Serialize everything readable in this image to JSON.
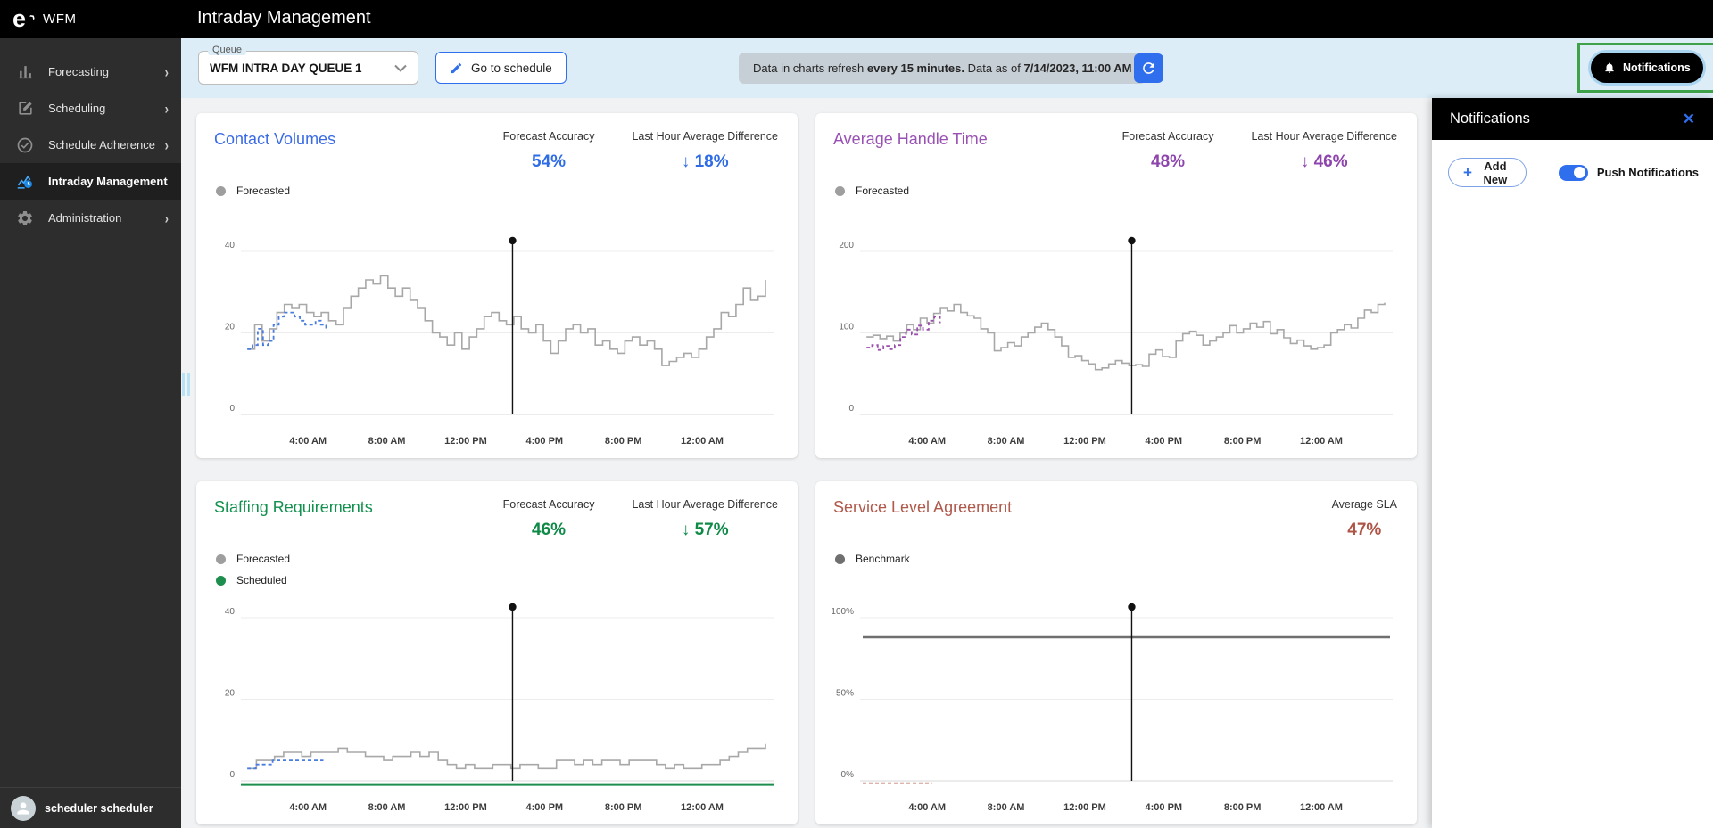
{
  "app": {
    "logo": "e",
    "logo_mark": "›",
    "brand": "WFM",
    "page_title": "Intraday Management"
  },
  "sidebar": {
    "items": [
      {
        "label": "Forecasting",
        "icon": "bar-chart-icon",
        "chevron": "›",
        "active": false
      },
      {
        "label": "Scheduling",
        "icon": "edit-icon",
        "chevron": "›",
        "active": false
      },
      {
        "label": "Schedule Adherence",
        "icon": "check-circle-icon",
        "chevron": "›",
        "active": false
      },
      {
        "label": "Intraday Management",
        "icon": "intraday-chart-icon",
        "chevron": "",
        "active": true
      },
      {
        "label": "Administration",
        "icon": "gear-icon",
        "chevron": "›",
        "active": false
      }
    ],
    "user_name": "scheduler scheduler"
  },
  "toolbar": {
    "queue_label": "Queue",
    "queue_value": "WFM INTRA DAY QUEUE 1",
    "go_to_schedule": "Go to schedule",
    "refresh_prefix": "Data in charts refresh ",
    "refresh_bold1": "every 15 minutes.",
    "refresh_mid": " Data as of ",
    "refresh_bold2": "7/14/2023, 11:00 AM",
    "notifications_label": "Notifications"
  },
  "notifications_panel": {
    "title": "Notifications",
    "close_icon": "✕",
    "add_new": "Add New",
    "push_notifications": "Push Notifications"
  },
  "colors": {
    "accent_blue": "#2f6fed",
    "strip_bg": "#dcedf8",
    "green_annotation": "#3fa24a",
    "grid": "#ececec",
    "axis": "#d8d8d8"
  },
  "chart_data": [
    {
      "type": "step-line",
      "title": "Contact Volumes",
      "title_color": "#3b6be4",
      "value_color": "#2e6be6",
      "metrics": [
        {
          "label": "Forecast Accuracy",
          "value": "54%"
        },
        {
          "label": "Last Hour Average Difference",
          "value": "↓ 18%"
        }
      ],
      "legend": [
        {
          "label": "Forecasted",
          "color": "#9e9e9e"
        }
      ],
      "ylim": [
        0,
        40
      ],
      "yticks": [
        {
          "v": 0,
          "label": "0"
        },
        {
          "v": 20,
          "label": "20"
        },
        {
          "v": 40,
          "label": "40"
        }
      ],
      "xticks": [
        {
          "pos": 0.126,
          "label": "4:00 AM"
        },
        {
          "pos": 0.274,
          "label": "8:00 AM"
        },
        {
          "pos": 0.422,
          "label": "12:00 PM"
        },
        {
          "pos": 0.57,
          "label": "4:00 PM"
        },
        {
          "pos": 0.718,
          "label": "8:00 PM"
        },
        {
          "pos": 0.866,
          "label": "12:00 AM"
        }
      ],
      "marker_pos": 0.51,
      "series": [
        {
          "name": "forecasted",
          "color": "#a8a8a8",
          "width": 1.6,
          "dash": false,
          "x0": 0.012,
          "x1": 0.985,
          "values": [
            16,
            22,
            18,
            21,
            25,
            27,
            26,
            27,
            25,
            24,
            25,
            23,
            22,
            26,
            29,
            31,
            33,
            32,
            34,
            31,
            29,
            31,
            28,
            26,
            23,
            20,
            19,
            17,
            20,
            16,
            19,
            21,
            24,
            25,
            23,
            22,
            24,
            21,
            20,
            22,
            18,
            15,
            18,
            21,
            22,
            20,
            21,
            17,
            18,
            16,
            15,
            18,
            19,
            17,
            18,
            16,
            12,
            13,
            14,
            15,
            14,
            16,
            19,
            21,
            25,
            24,
            27,
            31,
            28,
            29,
            33
          ]
        },
        {
          "name": "actual",
          "color": "#4a7de0",
          "width": 1.8,
          "dash": true,
          "x0": 0.012,
          "x1": 0.16,
          "values": [
            16,
            17,
            21,
            17,
            18,
            22,
            24,
            25,
            25,
            24,
            23,
            22,
            22,
            23,
            22,
            21
          ]
        }
      ]
    },
    {
      "type": "step-line",
      "title": "Average Handle Time",
      "title_color": "#9952b3",
      "value_color": "#8e44ad",
      "metrics": [
        {
          "label": "Forecast Accuracy",
          "value": "48%"
        },
        {
          "label": "Last Hour Average Difference",
          "value": "↓ 46%"
        }
      ],
      "legend": [
        {
          "label": "Forecasted",
          "color": "#9e9e9e"
        }
      ],
      "ylim": [
        0,
        200
      ],
      "yticks": [
        {
          "v": 0,
          "label": "0"
        },
        {
          "v": 100,
          "label": "100"
        },
        {
          "v": 200,
          "label": "200"
        }
      ],
      "xticks": [
        {
          "pos": 0.126,
          "label": "4:00 AM"
        },
        {
          "pos": 0.274,
          "label": "8:00 AM"
        },
        {
          "pos": 0.422,
          "label": "12:00 PM"
        },
        {
          "pos": 0.57,
          "label": "4:00 PM"
        },
        {
          "pos": 0.718,
          "label": "8:00 PM"
        },
        {
          "pos": 0.866,
          "label": "12:00 AM"
        }
      ],
      "marker_pos": 0.51,
      "series": [
        {
          "name": "forecasted",
          "color": "#a8a8a8",
          "width": 1.6,
          "dash": false,
          "x0": 0.012,
          "x1": 0.985,
          "values": [
            95,
            97,
            93,
            96,
            90,
            100,
            110,
            104,
            118,
            112,
            124,
            130,
            127,
            135,
            125,
            121,
            118,
            105,
            100,
            78,
            82,
            88,
            84,
            95,
            100,
            107,
            112,
            104,
            95,
            84,
            70,
            72,
            66,
            62,
            55,
            57,
            62,
            66,
            63,
            60,
            61,
            59,
            74,
            79,
            71,
            70,
            90,
            99,
            102,
            97,
            85,
            90,
            95,
            100,
            109,
            100,
            105,
            112,
            107,
            114,
            99,
            104,
            94,
            87,
            91,
            84,
            80,
            82,
            85,
            100,
            104,
            110,
            106,
            118,
            128,
            125,
            135,
            137
          ]
        },
        {
          "name": "actual",
          "color": "#9b4fad",
          "width": 1.8,
          "dash": true,
          "x0": 0.012,
          "x1": 0.15,
          "values": [
            82,
            85,
            79,
            84,
            80,
            85,
            95,
            104,
            98,
            109,
            104,
            115,
            120,
            112
          ]
        }
      ]
    },
    {
      "type": "step-line",
      "title": "Staffing Requirements",
      "title_color": "#12914e",
      "value_color": "#0e8a47",
      "metrics": [
        {
          "label": "Forecast Accuracy",
          "value": "46%"
        },
        {
          "label": "Last Hour Average Difference",
          "value": "↓ 57%"
        }
      ],
      "legend": [
        {
          "label": "Forecasted",
          "color": "#9e9e9e"
        },
        {
          "label": "Scheduled",
          "color": "#1e8e4e"
        }
      ],
      "ylim": [
        0,
        40
      ],
      "yticks": [
        {
          "v": 0,
          "label": "0"
        },
        {
          "v": 20,
          "label": "20"
        },
        {
          "v": 40,
          "label": "40"
        }
      ],
      "xticks": [
        {
          "pos": 0.126,
          "label": "4:00 AM"
        },
        {
          "pos": 0.274,
          "label": "8:00 AM"
        },
        {
          "pos": 0.422,
          "label": "12:00 PM"
        },
        {
          "pos": 0.57,
          "label": "4:00 PM"
        },
        {
          "pos": 0.718,
          "label": "8:00 PM"
        },
        {
          "pos": 0.866,
          "label": "12:00 AM"
        }
      ],
      "marker_pos": 0.51,
      "series": [
        {
          "name": "scheduled",
          "color": "#1e8e4e",
          "width": 2,
          "dash": false,
          "x0": 0.0,
          "x1": 1.0,
          "values": [
            -1,
            -1
          ]
        },
        {
          "name": "forecasted",
          "color": "#a8a8a8",
          "width": 1.6,
          "dash": false,
          "x0": 0.012,
          "x1": 0.985,
          "values": [
            3,
            5,
            5,
            6,
            7,
            7,
            6,
            7,
            7,
            7,
            8,
            7,
            7,
            6,
            6,
            5,
            6,
            6,
            7,
            6,
            7,
            5,
            4,
            3,
            4,
            3,
            3,
            4,
            4,
            3,
            4,
            4,
            3,
            3,
            5,
            5,
            4,
            5,
            4,
            5,
            5,
            4,
            5,
            5,
            5,
            4,
            3,
            4,
            3,
            3,
            4,
            4,
            5,
            6,
            7,
            8,
            8,
            9
          ]
        },
        {
          "name": "actual",
          "color": "#4a7de0",
          "width": 1.8,
          "dash": true,
          "x0": 0.012,
          "x1": 0.155,
          "values": [
            3,
            4,
            4,
            5,
            5,
            5,
            5,
            5,
            5,
            5
          ]
        }
      ]
    },
    {
      "type": "step-line",
      "title": "Service Level Agreement",
      "title_color": "#b05a4c",
      "value_color": "#ad5446",
      "metrics": [
        {
          "label": "Average SLA",
          "value": "47%"
        }
      ],
      "legend": [
        {
          "label": "Benchmark",
          "color": "#6f6f6f"
        }
      ],
      "ylim": [
        0,
        100
      ],
      "yticks": [
        {
          "v": 0,
          "label": "0%"
        },
        {
          "v": 50,
          "label": "50%"
        },
        {
          "v": 100,
          "label": "100%"
        }
      ],
      "xticks": [
        {
          "pos": 0.126,
          "label": "4:00 AM"
        },
        {
          "pos": 0.274,
          "label": "8:00 AM"
        },
        {
          "pos": 0.422,
          "label": "12:00 PM"
        },
        {
          "pos": 0.57,
          "label": "4:00 PM"
        },
        {
          "pos": 0.718,
          "label": "8:00 PM"
        },
        {
          "pos": 0.866,
          "label": "12:00 AM"
        }
      ],
      "marker_pos": 0.51,
      "series": [
        {
          "name": "benchmark",
          "color": "#6f6f6f",
          "width": 2.5,
          "dash": false,
          "x0": 0.005,
          "x1": 0.995,
          "values": [
            88,
            88
          ]
        },
        {
          "name": "actual",
          "color": "#c9897c",
          "width": 1.8,
          "dash": true,
          "x0": 0.005,
          "x1": 0.135,
          "values": [
            -1.5,
            -1.5
          ]
        }
      ]
    }
  ]
}
